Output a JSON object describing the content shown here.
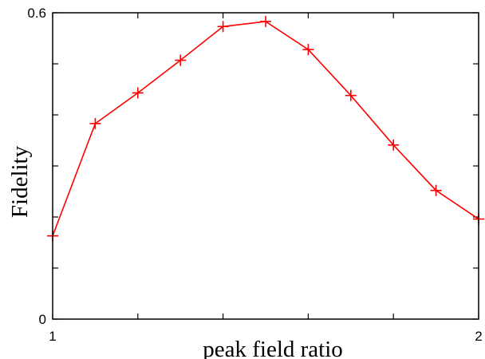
{
  "chart_data": {
    "type": "line",
    "title": "",
    "xlabel": "peak field ratio",
    "ylabel": "Fidelity",
    "xlim": [
      1,
      2
    ],
    "ylim": [
      0,
      0.6
    ],
    "x_ticks": [
      1,
      1.2,
      1.4,
      1.6,
      1.8,
      2
    ],
    "x_tick_labels": [
      "1",
      "",
      "",
      "",
      "",
      "2"
    ],
    "y_ticks": [
      0,
      0.1,
      0.2,
      0.3,
      0.4,
      0.5,
      0.6
    ],
    "y_tick_labels": [
      "0",
      "",
      "",
      "",
      "",
      "",
      "0.6"
    ],
    "grid": false,
    "legend": false,
    "color": "#ff0000",
    "marker": "plus",
    "series": [
      {
        "x": [
          1.0,
          1.1,
          1.2,
          1.3,
          1.4,
          1.5,
          1.6,
          1.7,
          1.8,
          1.9,
          2.0
        ],
        "y": [
          0.163,
          0.383,
          0.443,
          0.507,
          0.573,
          0.583,
          0.528,
          0.438,
          0.341,
          0.252,
          0.196
        ]
      }
    ]
  }
}
